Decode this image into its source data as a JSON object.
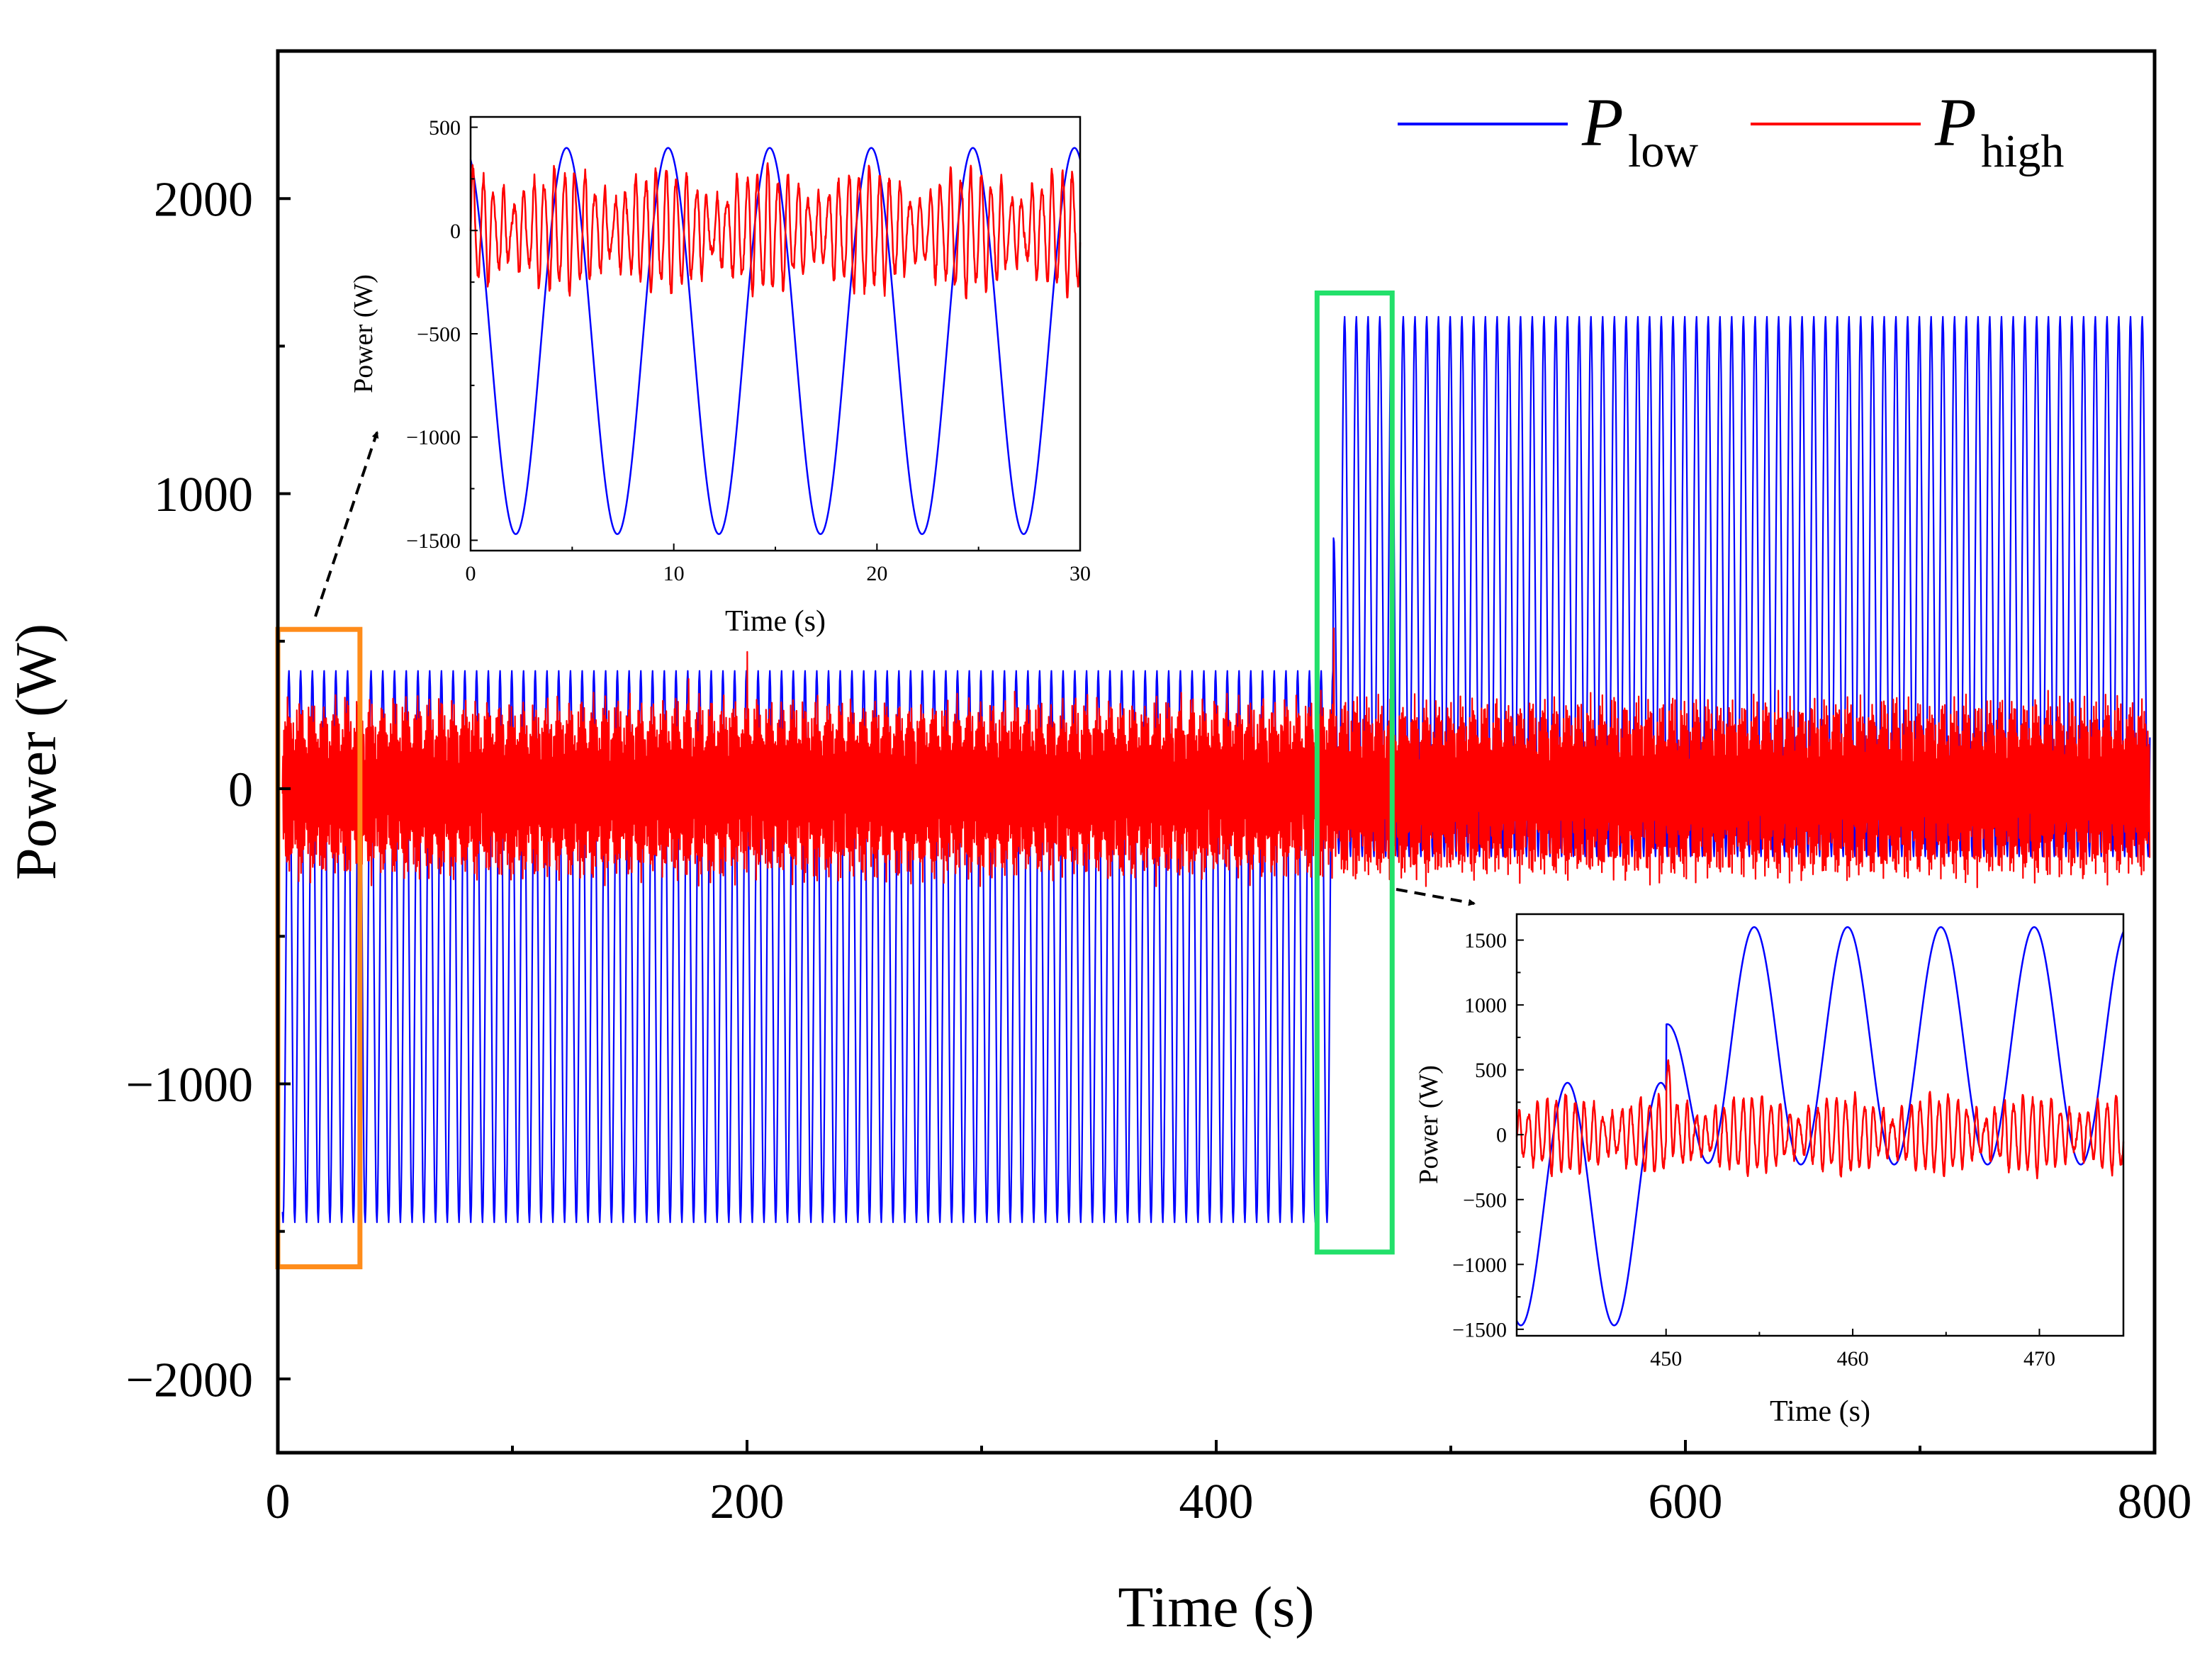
{
  "chart_data": [
    {
      "id": "main",
      "type": "line",
      "xlabel": "Time (s)",
      "ylabel": "Power (W)",
      "xlim": [
        0,
        800
      ],
      "ylim": [
        -2250,
        2500
      ],
      "xticks": [
        0,
        200,
        400,
        600,
        800
      ],
      "yticks": [
        -2000,
        -1000,
        0,
        1000,
        2000
      ],
      "xtick_labels": [
        "0",
        "200",
        "400",
        "600",
        "800"
      ],
      "ytick_labels": [
        "−2000",
        "−1000",
        "0",
        "1000",
        "2000"
      ],
      "legend": {
        "placement": "top-right",
        "entries": [
          {
            "symbol": "P",
            "subscript": "low",
            "color": "#0000ff"
          },
          {
            "symbol": "P",
            "subscript": "high",
            "color": "#ff0000"
          }
        ]
      },
      "series": [
        {
          "name": "P_low",
          "color": "#0000ff",
          "description_segments": [
            {
              "t_start": 0,
              "t_end": 450,
              "period_s": 5,
              "max": 400,
              "min": -1470
            },
            {
              "t_start": 450,
              "t_end": 800,
              "period_s": 5,
              "max": 1600,
              "min": -230
            }
          ]
        },
        {
          "name": "P_high",
          "color": "#ff0000",
          "description_segments": [
            {
              "t_start": 0,
              "t_end": 800,
              "period_s": 0.5,
              "amplitude": 280,
              "envelope_period_s": 5
            }
          ],
          "spikes": [
            {
              "t": 175,
              "value": 430
            },
            {
              "t": 200,
              "value": 520
            },
            {
              "t": 450,
              "value": 640
            }
          ]
        }
      ],
      "highlights": [
        {
          "color": "#ff8c1a",
          "t_range": [
            0,
            35
          ],
          "value_range": [
            -1620,
            540
          ]
        },
        {
          "color": "#22e06a",
          "t_range": [
            443,
            475
          ],
          "value_range": [
            -1570,
            1680
          ]
        }
      ]
    },
    {
      "id": "inset_left",
      "type": "line",
      "xlabel": "Time (s)",
      "ylabel": "Power (W)",
      "xlim": [
        0,
        30
      ],
      "ylim": [
        -1550,
        550
      ],
      "xticks": [
        0,
        10,
        20,
        30
      ],
      "yticks": [
        -1500,
        -1000,
        -500,
        0,
        500
      ],
      "xtick_labels": [
        "0",
        "10",
        "20",
        "30"
      ],
      "ytick_labels": [
        "−1500",
        "−1000",
        "−500",
        "0",
        "500"
      ]
    },
    {
      "id": "inset_right",
      "type": "line",
      "xlabel": "Time (s)",
      "ylabel": "Power (W)",
      "xlim": [
        442,
        474.5
      ],
      "ylim": [
        -1550,
        1700
      ],
      "xticks": [
        450,
        460,
        470
      ],
      "yticks": [
        -1500,
        -1000,
        -500,
        0,
        500,
        1000,
        1500
      ],
      "xtick_labels": [
        "450",
        "460",
        "470"
      ],
      "ytick_labels": [
        "−1500",
        "−1000",
        "−500",
        "0",
        "500",
        "1000",
        "1500"
      ]
    }
  ]
}
